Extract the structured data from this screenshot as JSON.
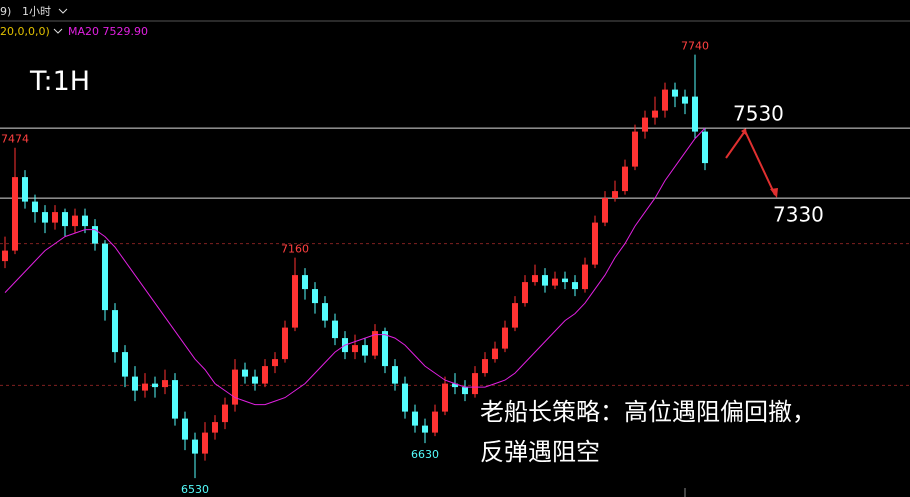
{
  "chart_data": {
    "type": "candlestick",
    "header": {
      "cut": "9)",
      "period": "1小时",
      "params": "20,0,0,0)",
      "ma_label": "MA20 7529.90"
    },
    "annotation": "T:1H",
    "strategy": [
      "老船长策略：高位遇阻偏回撤，",
      "反弹遇阻空"
    ],
    "ylim": [
      6476,
      7896
    ],
    "up_color": "#ff3232",
    "down_color": "#54fcfc",
    "ma_color": "#e020e0",
    "levels": [
      7530,
      7330
    ],
    "dashed_levels": [
      7200,
      6795
    ],
    "extremes": [
      7474,
      7160,
      7740,
      6530,
      6630
    ],
    "ohlc": [
      [
        7150,
        7220,
        7130,
        7180
      ],
      [
        7180,
        7474,
        7170,
        7390
      ],
      [
        7390,
        7410,
        7300,
        7320
      ],
      [
        7320,
        7340,
        7260,
        7290
      ],
      [
        7290,
        7310,
        7230,
        7260
      ],
      [
        7260,
        7310,
        7240,
        7290
      ],
      [
        7290,
        7300,
        7220,
        7250
      ],
      [
        7250,
        7300,
        7230,
        7280
      ],
      [
        7280,
        7300,
        7230,
        7250
      ],
      [
        7250,
        7270,
        7180,
        7200
      ],
      [
        7200,
        7210,
        6980,
        7010
      ],
      [
        7010,
        7030,
        6860,
        6890
      ],
      [
        6890,
        6910,
        6790,
        6820
      ],
      [
        6820,
        6850,
        6750,
        6780
      ],
      [
        6780,
        6830,
        6760,
        6800
      ],
      [
        6800,
        6820,
        6760,
        6790
      ],
      [
        6790,
        6840,
        6770,
        6810
      ],
      [
        6810,
        6830,
        6680,
        6700
      ],
      [
        6700,
        6720,
        6610,
        6640
      ],
      [
        6640,
        6660,
        6530,
        6600
      ],
      [
        6600,
        6690,
        6580,
        6660
      ],
      [
        6660,
        6710,
        6640,
        6690
      ],
      [
        6690,
        6760,
        6670,
        6740
      ],
      [
        6740,
        6870,
        6720,
        6840
      ],
      [
        6840,
        6860,
        6800,
        6820
      ],
      [
        6820,
        6840,
        6780,
        6800
      ],
      [
        6800,
        6870,
        6790,
        6850
      ],
      [
        6850,
        6890,
        6830,
        6870
      ],
      [
        6870,
        6980,
        6860,
        6960
      ],
      [
        6960,
        7160,
        6950,
        7110
      ],
      [
        7110,
        7130,
        7040,
        7070
      ],
      [
        7070,
        7090,
        7000,
        7030
      ],
      [
        7030,
        7050,
        6960,
        6980
      ],
      [
        6980,
        7000,
        6910,
        6930
      ],
      [
        6930,
        6950,
        6870,
        6890
      ],
      [
        6890,
        6940,
        6870,
        6910
      ],
      [
        6910,
        6930,
        6860,
        6880
      ],
      [
        6880,
        6970,
        6870,
        6950
      ],
      [
        6950,
        6960,
        6830,
        6850
      ],
      [
        6850,
        6870,
        6780,
        6800
      ],
      [
        6800,
        6820,
        6700,
        6720
      ],
      [
        6720,
        6740,
        6660,
        6680
      ],
      [
        6680,
        6700,
        6630,
        6660
      ],
      [
        6660,
        6740,
        6650,
        6720
      ],
      [
        6720,
        6820,
        6710,
        6800
      ],
      [
        6800,
        6830,
        6770,
        6790
      ],
      [
        6790,
        6810,
        6750,
        6770
      ],
      [
        6770,
        6850,
        6760,
        6830
      ],
      [
        6830,
        6890,
        6820,
        6870
      ],
      [
        6870,
        6920,
        6860,
        6900
      ],
      [
        6900,
        6980,
        6890,
        6960
      ],
      [
        6960,
        7050,
        6950,
        7030
      ],
      [
        7030,
        7110,
        7020,
        7090
      ],
      [
        7090,
        7140,
        7080,
        7110
      ],
      [
        7110,
        7130,
        7060,
        7080
      ],
      [
        7080,
        7120,
        7070,
        7100
      ],
      [
        7100,
        7120,
        7070,
        7090
      ],
      [
        7090,
        7110,
        7050,
        7070
      ],
      [
        7070,
        7160,
        7060,
        7140
      ],
      [
        7140,
        7280,
        7130,
        7260
      ],
      [
        7260,
        7350,
        7250,
        7330
      ],
      [
        7330,
        7380,
        7320,
        7350
      ],
      [
        7350,
        7440,
        7340,
        7420
      ],
      [
        7420,
        7540,
        7410,
        7520
      ],
      [
        7520,
        7580,
        7500,
        7560
      ],
      [
        7560,
        7620,
        7540,
        7580
      ],
      [
        7580,
        7660,
        7560,
        7640
      ],
      [
        7640,
        7660,
        7590,
        7620
      ],
      [
        7620,
        7640,
        7570,
        7600
      ],
      [
        7620,
        7740,
        7500,
        7520
      ],
      [
        7520,
        7530,
        7410,
        7430
      ]
    ],
    "ma20": [
      7060,
      7090,
      7120,
      7150,
      7180,
      7200,
      7220,
      7230,
      7240,
      7240,
      7220,
      7190,
      7150,
      7110,
      7070,
      7030,
      6990,
      6950,
      6910,
      6870,
      6840,
      6800,
      6780,
      6760,
      6750,
      6740,
      6740,
      6750,
      6760,
      6780,
      6800,
      6830,
      6860,
      6890,
      6910,
      6920,
      6930,
      6940,
      6940,
      6930,
      6910,
      6880,
      6850,
      6830,
      6810,
      6800,
      6790,
      6790,
      6790,
      6800,
      6810,
      6830,
      6860,
      6890,
      6920,
      6950,
      6980,
      7000,
      7030,
      7070,
      7110,
      7160,
      7200,
      7250,
      7290,
      7330,
      7380,
      7420,
      7460,
      7500,
      7530
    ]
  }
}
